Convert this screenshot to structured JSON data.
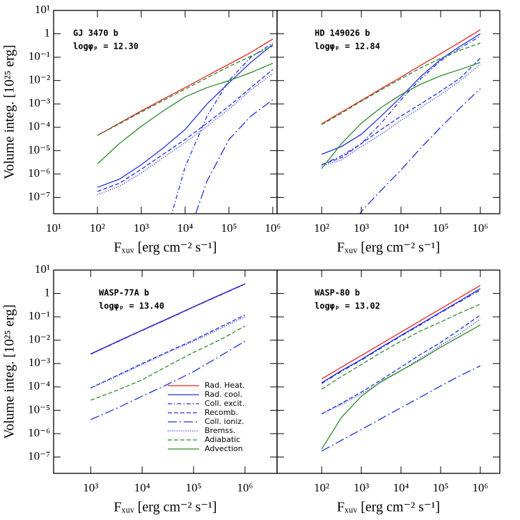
{
  "chart_data": [
    {
      "type": "line",
      "title": "GJ 3470 b",
      "annotation": "logφₚ = 12.30",
      "xlabel": "Fₓᵤᵥ [erg cm⁻² s⁻¹]",
      "ylabel": "Volume integ. [10²⁵ erg]",
      "xscale": "log",
      "yscale": "log",
      "xlim": [
        10,
        1250000
      ],
      "ylim": [
        2e-08,
        10
      ],
      "xticks": [
        {
          "value": 10,
          "label": "10¹"
        },
        {
          "value": 100,
          "label": "10²"
        },
        {
          "value": 1000,
          "label": "10³"
        },
        {
          "value": 10000,
          "label": "10⁴"
        },
        {
          "value": 100000,
          "label": "10⁵"
        },
        {
          "value": 1000000,
          "label": "10⁶"
        }
      ],
      "yticks": [
        {
          "value": 10,
          "label": "10¹"
        },
        1,
        {
          "value": 0.1,
          "label": "10⁻¹"
        },
        {
          "value": 0.01,
          "label": "10⁻²"
        },
        {
          "value": 0.001,
          "label": "10⁻³"
        },
        {
          "value": 0.0001,
          "label": "10⁻⁴"
        },
        {
          "value": 1e-05,
          "label": "10⁻⁵"
        },
        {
          "value": 1e-06,
          "label": "10⁻⁶"
        },
        {
          "value": 1e-07,
          "label": "10⁻⁷"
        }
      ],
      "x": [
        100,
        316,
        1000,
        3160,
        10000,
        31600,
        100000,
        316000,
        1000000
      ],
      "series": [
        {
          "color": "#e8231f",
          "style": "solid",
          "values": [
            4.5e-05,
            0.00015,
            0.0005,
            0.0016,
            0.005,
            0.016,
            0.05,
            0.16,
            0.6
          ]
        },
        {
          "color": "#1f2ee0",
          "style": "solid",
          "values": [
            2.7e-07,
            6e-07,
            2.5e-06,
            1.3e-05,
            8e-05,
            0.001,
            0.008,
            0.06,
            0.35
          ]
        },
        {
          "color": "#1f2ee0",
          "style": "dashdot",
          "values": [
            null,
            null,
            null,
            1e-09,
            2e-06,
            0.0003,
            0.01,
            0.1,
            0.4
          ]
        },
        {
          "color": "#1f2ee0",
          "style": "dashed",
          "values": [
            1.8e-07,
            4e-07,
            1.6e-06,
            7e-06,
            3e-05,
            0.00015,
            0.0008,
            0.005,
            0.03
          ]
        },
        {
          "color": "#1f2ee0",
          "style": "longdashdot",
          "values": [
            null,
            null,
            null,
            null,
            1e-09,
            5e-07,
            3e-05,
            0.0003,
            0.0015
          ]
        },
        {
          "color": "#1f2ee0",
          "style": "dotted",
          "values": [
            1.3e-07,
            3e-07,
            1.1e-06,
            5e-06,
            2.2e-05,
            0.00011,
            0.0006,
            0.004,
            0.02
          ]
        },
        {
          "color": "#2a8a2a",
          "style": "dashed",
          "values": [
            4.5e-05,
            0.00014,
            0.00045,
            0.0014,
            0.0043,
            0.013,
            0.04,
            0.11,
            0.3
          ]
        },
        {
          "color": "#2a8a2a",
          "style": "solid",
          "values": [
            2.7e-06,
            2e-05,
            0.00011,
            0.0005,
            0.002,
            0.005,
            0.01,
            0.022,
            0.055
          ]
        }
      ]
    },
    {
      "type": "line",
      "title": "HD 149026 b",
      "annotation": "logφₚ = 12.84",
      "xlabel": "Fₓᵤᵥ [erg cm⁻² s⁻¹]",
      "xscale": "log",
      "yscale": "log",
      "xlim": [
        7.5,
        3100000
      ],
      "ylim": [
        2e-08,
        10
      ],
      "xticks": [
        {
          "value": 100,
          "label": "10²"
        },
        {
          "value": 1000,
          "label": "10³"
        },
        {
          "value": 10000,
          "label": "10⁴"
        },
        {
          "value": 100000,
          "label": "10⁵"
        },
        {
          "value": 1000000,
          "label": "10⁶"
        }
      ],
      "yticks": [
        10,
        1,
        0.1,
        0.01,
        0.001,
        0.0001,
        1e-05,
        1e-06,
        1e-07
      ],
      "x": [
        100,
        316,
        1000,
        3160,
        10000,
        31600,
        100000,
        316000,
        1000000
      ],
      "series": [
        {
          "color": "#e8231f",
          "style": "solid",
          "values": [
            0.00014,
            0.00045,
            0.0014,
            0.0045,
            0.014,
            0.045,
            0.14,
            0.45,
            1.5
          ]
        },
        {
          "color": "#1f2ee0",
          "style": "solid",
          "values": [
            7e-06,
            1.5e-05,
            5e-05,
            0.0003,
            0.002,
            0.015,
            0.08,
            0.3,
            1.0
          ]
        },
        {
          "color": "#1f2ee0",
          "style": "dashdot",
          "values": [
            2.5e-06,
            6e-06,
            2e-05,
            0.00015,
            0.0015,
            0.012,
            0.07,
            0.25,
            0.8
          ]
        },
        {
          "color": "#1f2ee0",
          "style": "dashed",
          "values": [
            2.5e-06,
            5e-06,
            2e-05,
            8e-05,
            0.0003,
            0.001,
            0.0035,
            0.013,
            0.09
          ]
        },
        {
          "color": "#1f2ee0",
          "style": "longdashdot",
          "values": [
            null,
            1e-09,
            2.5e-08,
            2e-07,
            1.5e-06,
            1.3e-05,
            0.0001,
            0.0007,
            0.0045
          ]
        },
        {
          "color": "#1f2ee0",
          "style": "dotted",
          "values": [
            2.2e-06,
            4e-06,
            1.5e-05,
            5e-05,
            0.0002,
            0.0007,
            0.0025,
            0.01,
            0.05
          ]
        },
        {
          "color": "#2a8a2a",
          "style": "dashed",
          "values": [
            0.00013,
            0.0004,
            0.0013,
            0.004,
            0.012,
            0.035,
            0.09,
            0.2,
            0.4
          ]
        },
        {
          "color": "#2a8a2a",
          "style": "solid",
          "values": [
            1.7e-06,
            2e-05,
            0.00015,
            0.0007,
            0.0025,
            0.007,
            0.016,
            0.03,
            0.06
          ]
        }
      ]
    },
    {
      "type": "line",
      "title": "WASP-77A b",
      "annotation": "logφₚ = 13.40",
      "xlabel": "Fₓᵤᵥ [erg cm⁻² s⁻¹]",
      "ylabel": "Volume integ. [10²⁵ erg]",
      "xscale": "log",
      "yscale": "log",
      "legend": "lower right",
      "xlim": [
        190,
        4200000
      ],
      "ylim": [
        2e-08,
        10
      ],
      "xticks": [
        {
          "value": 1000,
          "label": "10³"
        },
        {
          "value": 10000,
          "label": "10⁴"
        },
        {
          "value": 100000,
          "label": "10⁵"
        },
        {
          "value": 1000000,
          "label": "10⁶"
        }
      ],
      "yticks": [
        {
          "value": 10,
          "label": "10¹"
        },
        1,
        {
          "value": 0.1,
          "label": "10⁻¹"
        },
        {
          "value": 0.01,
          "label": "10⁻²"
        },
        {
          "value": 0.001,
          "label": "10⁻³"
        },
        {
          "value": 0.0001,
          "label": "10⁻⁴"
        },
        {
          "value": 1e-05,
          "label": "10⁻⁵"
        },
        {
          "value": 1e-06,
          "label": "10⁻⁶"
        },
        {
          "value": 1e-07,
          "label": "10⁻⁷"
        }
      ],
      "x": [
        1000,
        3160,
        10000,
        31600,
        100000,
        316000,
        1000000
      ],
      "series": [
        {
          "name": "Rad. Heat.",
          "color": "#e8231f",
          "style": "solid",
          "values": [
            0.0026,
            0.0085,
            0.027,
            0.085,
            0.27,
            0.85,
            2.6
          ]
        },
        {
          "name": "Rad. cool.",
          "color": "#1f2ee0",
          "style": "solid",
          "values": [
            0.00255,
            0.0083,
            0.0265,
            0.083,
            0.265,
            0.83,
            2.55
          ]
        },
        {
          "name": "Coll. excit.",
          "color": "#1f2ee0",
          "style": "dashdot",
          "values": [
            0.0025,
            0.0081,
            0.026,
            0.081,
            0.26,
            0.81,
            2.5
          ]
        },
        {
          "name": "Recomb.",
          "color": "#1f2ee0",
          "style": "dashed",
          "values": [
            9e-05,
            0.0003,
            0.001,
            0.0032,
            0.01,
            0.035,
            0.12
          ]
        },
        {
          "name": "Coll. ioniz.",
          "color": "#1f2ee0",
          "style": "longdashdot",
          "values": [
            4e-06,
            1.2e-05,
            4e-05,
            0.00013,
            0.00045,
            0.002,
            0.009
          ]
        },
        {
          "name": "Bremss.",
          "color": "#1f2ee0",
          "style": "dotted",
          "values": [
            9e-05,
            0.00028,
            0.0009,
            0.003,
            0.009,
            0.03,
            0.1
          ]
        },
        {
          "name": "Adiabatic",
          "color": "#2a8a2a",
          "style": "dashed",
          "values": [
            2.7e-05,
            7e-05,
            0.0002,
            0.0008,
            0.003,
            0.01,
            0.04
          ]
        },
        {
          "name": "Advection",
          "color": "#2a8a2a",
          "style": "solid",
          "values": [
            null,
            null,
            null,
            null,
            null,
            null,
            null
          ]
        }
      ]
    },
    {
      "type": "line",
      "title": "WASP-80 b",
      "annotation": "logφₚ = 13.02",
      "xlabel": "Fₓᵤᵥ [erg cm⁻² s⁻¹]",
      "xscale": "log",
      "yscale": "log",
      "xlim": [
        7.5,
        3100000
      ],
      "ylim": [
        2e-08,
        10
      ],
      "xticks": [
        {
          "value": 100,
          "label": "10²"
        },
        {
          "value": 1000,
          "label": "10³"
        },
        {
          "value": 10000,
          "label": "10⁴"
        },
        {
          "value": 100000,
          "label": "10⁵"
        },
        {
          "value": 1000000,
          "label": "10⁶"
        }
      ],
      "yticks": [
        10,
        1,
        0.1,
        0.01,
        0.001,
        0.0001,
        1e-05,
        1e-06,
        1e-07
      ],
      "x": [
        100,
        316,
        1000,
        3160,
        10000,
        31600,
        100000,
        316000,
        1000000
      ],
      "series": [
        {
          "color": "#e8231f",
          "style": "solid",
          "values": [
            0.00022,
            0.0007,
            0.0022,
            0.007,
            0.022,
            0.07,
            0.22,
            0.7,
            2.2
          ]
        },
        {
          "color": "#1f2ee0",
          "style": "solid",
          "values": [
            0.00015,
            0.0005,
            0.0015,
            0.005,
            0.016,
            0.05,
            0.16,
            0.5,
            1.6
          ]
        },
        {
          "color": "#1f2ee0",
          "style": "dashdot",
          "values": [
            0.00014,
            0.00046,
            0.0014,
            0.0046,
            0.015,
            0.046,
            0.15,
            0.46,
            1.4
          ]
        },
        {
          "color": "#1f2ee0",
          "style": "dashed",
          "values": [
            7e-06,
            2e-05,
            6e-05,
            0.0002,
            0.0007,
            0.0025,
            0.008,
            0.03,
            0.12
          ]
        },
        {
          "color": "#1f2ee0",
          "style": "longdashdot",
          "values": [
            1.8e-07,
            5.2e-07,
            1.5e-06,
            4.4e-06,
            1.3e-05,
            3.7e-05,
            0.00011,
            0.00031,
            0.0008
          ]
        },
        {
          "color": "#1f2ee0",
          "style": "dotted",
          "values": [
            7e-06,
            1.8e-05,
            5e-05,
            0.00016,
            0.0005,
            0.0017,
            0.006,
            0.02,
            0.08
          ]
        },
        {
          "color": "#2a8a2a",
          "style": "dashed",
          "values": [
            8e-05,
            0.00028,
            0.0009,
            0.003,
            0.009,
            0.025,
            0.06,
            0.15,
            0.35
          ]
        },
        {
          "color": "#2a8a2a",
          "style": "solid",
          "values": [
            2.2e-07,
            5e-06,
            4e-05,
            0.00017,
            0.0005,
            0.0015,
            0.005,
            0.015,
            0.045
          ]
        }
      ]
    }
  ]
}
